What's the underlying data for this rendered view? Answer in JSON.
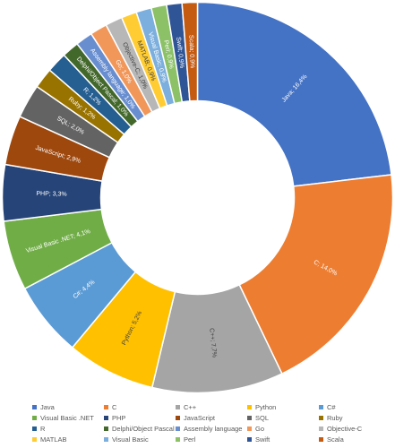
{
  "chart_data": {
    "type": "pie",
    "variant": "donut",
    "legend_position": "bottom",
    "series": [
      {
        "label": "Java",
        "value": 16.4,
        "text": "Java; 16,4%",
        "color": "#4472C4"
      },
      {
        "label": "C",
        "value": 14.0,
        "text": "C; 14,0%",
        "color": "#ED7D31"
      },
      {
        "label": "C++",
        "value": 7.7,
        "text": "C++; 7,7%",
        "color": "#A5A5A5"
      },
      {
        "label": "Python",
        "value": 5.2,
        "text": "Python; 5,2%",
        "color": "#FFC000"
      },
      {
        "label": "C#",
        "value": 4.4,
        "text": "C#; 4,4%",
        "color": "#5B9BD5"
      },
      {
        "label": "Visual Basic .NET",
        "value": 4.1,
        "text": "Visual Basic .NET; 4,1%",
        "color": "#70AD47"
      },
      {
        "label": "PHP",
        "value": 3.3,
        "text": "PHP; 3,3%",
        "color": "#264478"
      },
      {
        "label": "JavaScript",
        "value": 2.9,
        "text": "JavaScript; 2,9%",
        "color": "#9E480E"
      },
      {
        "label": "SQL",
        "value": 2.0,
        "text": "SQL; 2,0%",
        "color": "#636363"
      },
      {
        "label": "Ruby",
        "value": 1.2,
        "text": "Ruby; 1,2%",
        "color": "#997300"
      },
      {
        "label": "R",
        "value": 1.2,
        "text": "R; 1,2%",
        "color": "#255E91"
      },
      {
        "label": "Delphi/Object Pascal",
        "value": 1.0,
        "text": "Delphi/Object Pascal; 1,0%",
        "color": "#43682B"
      },
      {
        "label": "Assembly language",
        "value": 1.0,
        "text": "Assembly language; 1,0%",
        "color": "#698ED0"
      },
      {
        "label": "Go",
        "value": 1.0,
        "text": "Go; 1,0%",
        "color": "#F1975A"
      },
      {
        "label": "Objective-C",
        "value": 1.0,
        "text": "Objective-C; 1,0%",
        "color": "#B7B7B7"
      },
      {
        "label": "MATLAB",
        "value": 0.9,
        "text": "MATLAB; 0,9%",
        "color": "#FFCD33"
      },
      {
        "label": "Visual Basic",
        "value": 0.9,
        "text": "Visual Basic; 0,9%",
        "color": "#7CAFDD"
      },
      {
        "label": "Perl",
        "value": 0.9,
        "text": "Perl; 0,9%",
        "color": "#8CC168"
      },
      {
        "label": "Swift",
        "value": 0.9,
        "text": "Swift; 0,9%",
        "color": "#2F5597"
      },
      {
        "label": "Scala",
        "value": 0.9,
        "text": "Scala; 0,9%",
        "color": "#C55A11"
      }
    ]
  }
}
